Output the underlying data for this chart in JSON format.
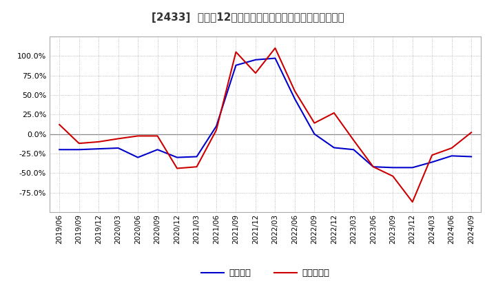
{
  "title": "[2433]  利益の12か月移動合計の対前年同期増減率の推移",
  "ylim": [
    -1.0,
    1.25
  ],
  "yticks": [
    -0.75,
    -0.5,
    -0.25,
    0.0,
    0.25,
    0.5,
    0.75,
    1.0
  ],
  "background_color": "#ffffff",
  "grid_color": "#aaaaaa",
  "zero_line_color": "#888888",
  "blue_color": "#0000cc",
  "red_color": "#cc0000",
  "dates_blue": [
    "2019/06",
    "2019/09",
    "2019/12",
    "2020/03",
    "2020/06",
    "2020/09",
    "2020/12",
    "2021/03",
    "2021/06",
    "2021/09",
    "2021/12",
    "2022/03",
    "2022/06",
    "2022/09",
    "2022/12",
    "2023/03",
    "2023/06",
    "2023/09",
    "2023/12",
    "2024/03",
    "2024/06",
    "2024/09"
  ],
  "values_blue": [
    -0.2,
    -0.2,
    -0.19,
    -0.18,
    -0.3,
    -0.2,
    -0.3,
    -0.29,
    0.1,
    0.88,
    0.95,
    0.97,
    0.45,
    0.0,
    -0.175,
    -0.2,
    -0.42,
    -0.43,
    -0.43,
    -0.36,
    -0.28,
    -0.29
  ],
  "dates_red": [
    "2019/06",
    "2019/09",
    "2019/12",
    "2020/03",
    "2020/06",
    "2020/09",
    "2020/12",
    "2021/03",
    "2021/06",
    "2021/09",
    "2021/12",
    "2022/03",
    "2022/06",
    "2022/09",
    "2022/12",
    "2023/03",
    "2023/06",
    "2023/09",
    "2023/12",
    "2024/03",
    "2024/06",
    "2024/09"
  ],
  "values_red": [
    0.12,
    -0.12,
    -0.1,
    -0.06,
    -0.025,
    -0.025,
    -0.44,
    -0.42,
    0.05,
    1.05,
    0.78,
    1.1,
    0.55,
    0.14,
    0.27,
    -0.08,
    -0.42,
    -0.54,
    -0.87,
    -0.27,
    -0.18,
    0.02
  ],
  "xtick_labels": [
    "2019/06",
    "2019/09",
    "2019/12",
    "2020/03",
    "2020/06",
    "2020/09",
    "2020/12",
    "2021/03",
    "2021/06",
    "2021/09",
    "2021/12",
    "2022/03",
    "2022/06",
    "2022/09",
    "2022/12",
    "2023/03",
    "2023/06",
    "2023/09",
    "2023/12",
    "2024/03",
    "2024/06",
    "2024/09"
  ],
  "legend_blue": "経常利益",
  "legend_red": "当期純利益",
  "title_prefix": "[2433]  ",
  "title_suffix": "利益の12か月移動合計の対前年同期増減率の推移"
}
